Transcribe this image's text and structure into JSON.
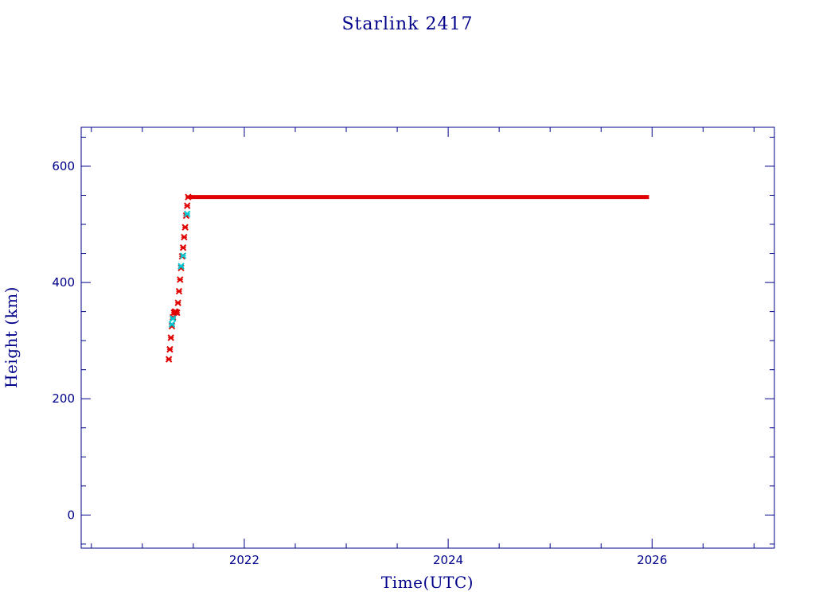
{
  "chart_data": {
    "type": "scatter",
    "title": "Starlink 2417",
    "xlabel": "Time(UTC)",
    "ylabel": "Height (km)",
    "xlim": [
      2020.4,
      2027.2
    ],
    "ylim": [
      -57,
      667
    ],
    "x_major_ticks": [
      2022,
      2024,
      2026
    ],
    "x_tick_labels": [
      "2022",
      "2024",
      "2026"
    ],
    "x_minor_ticks": [
      2020.5,
      2021,
      2021.5,
      2022.5,
      2023,
      2023.5,
      2024.5,
      2025,
      2025.5,
      2026.5,
      2027
    ],
    "y_major_ticks": [
      0,
      200,
      400,
      600
    ],
    "y_tick_labels": [
      "0",
      "200",
      "400",
      "600"
    ],
    "y_minor_ticks": [
      -50,
      50,
      100,
      150,
      250,
      300,
      350,
      450,
      500,
      550,
      650
    ],
    "grid": false,
    "colors": {
      "primary": "#e00000",
      "secondary": "#00c8d0",
      "axis": "#00008b"
    },
    "series": [
      {
        "color": "#e00000",
        "marker": "cross",
        "x": [
          2021.26,
          2021.27,
          2021.28,
          2021.29,
          2021.3,
          2021.31,
          2021.32,
          2021.33,
          2021.34,
          2021.35,
          2021.36,
          2021.37,
          2021.38,
          2021.39,
          2021.4,
          2021.41,
          2021.42,
          2021.43,
          2021.44,
          2021.45
        ],
        "y": [
          268,
          285,
          305,
          325,
          340,
          348,
          350,
          349,
          348,
          365,
          385,
          405,
          425,
          445,
          460,
          478,
          495,
          515,
          532,
          547
        ]
      },
      {
        "color": "#00c8d0",
        "marker": "cross",
        "x": [
          2021.29,
          2021.3,
          2021.38,
          2021.4,
          2021.44
        ],
        "y": [
          328,
          338,
          428,
          446,
          518
        ]
      },
      {
        "color": "#e00000",
        "marker": "line",
        "x": [
          2021.45,
          2022.0,
          2023.0,
          2024.0,
          2025.0,
          2025.97
        ],
        "y": [
          547,
          547,
          547,
          547,
          547,
          547
        ]
      }
    ]
  }
}
